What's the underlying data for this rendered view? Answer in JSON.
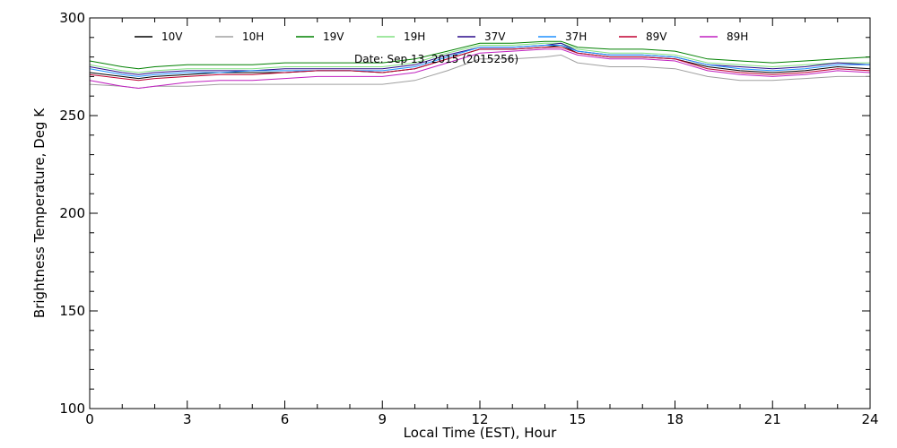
{
  "chart_data": {
    "type": "line",
    "xlabel": "Local Time (EST), Hour",
    "ylabel": "Brightness Temperature, Deg K",
    "xlim": [
      0,
      24
    ],
    "ylim": [
      100,
      300
    ],
    "xticks": [
      0,
      3,
      6,
      9,
      12,
      15,
      18,
      21,
      24
    ],
    "yticks": [
      100,
      150,
      200,
      250,
      300
    ],
    "x_minor_step": 1,
    "y_minor_step": 10,
    "grid": false,
    "legend_placement": "top",
    "annotation": "Date: Sep 13, 2015 (2015256)",
    "x": [
      0,
      1,
      1.5,
      2,
      3,
      4,
      5,
      6,
      7,
      8,
      9,
      10,
      11,
      12,
      13,
      14,
      14.5,
      15,
      16,
      17,
      18,
      19,
      20,
      21,
      22,
      23,
      24
    ],
    "series": [
      {
        "name": "10V",
        "color": "#000000",
        "values": [
          272,
          270,
          269,
          270,
          271,
          272,
          272,
          272,
          273,
          273,
          272,
          274,
          279,
          284,
          284,
          285,
          286,
          282,
          280,
          280,
          279,
          275,
          273,
          272,
          273,
          275,
          274
        ]
      },
      {
        "name": "10H",
        "color": "#a0a0a0",
        "values": [
          266,
          265,
          264,
          265,
          265,
          266,
          266,
          266,
          266,
          266,
          266,
          268,
          273,
          279,
          279,
          280,
          281,
          277,
          275,
          275,
          274,
          270,
          268,
          268,
          269,
          270,
          270
        ]
      },
      {
        "name": "19V",
        "color": "#008000",
        "values": [
          278,
          275,
          274,
          275,
          276,
          276,
          276,
          277,
          277,
          277,
          277,
          279,
          283,
          287,
          287,
          288,
          288,
          285,
          284,
          284,
          283,
          279,
          278,
          277,
          278,
          279,
          280
        ]
      },
      {
        "name": "19H",
        "color": "#80e080",
        "values": [
          276,
          273,
          272,
          273,
          274,
          274,
          274,
          275,
          275,
          275,
          275,
          277,
          282,
          286,
          286,
          287,
          287,
          284,
          282,
          282,
          281,
          277,
          276,
          275,
          276,
          277,
          277
        ]
      },
      {
        "name": "37V",
        "color": "#2a0a8a",
        "values": [
          275,
          272,
          271,
          272,
          273,
          273,
          273,
          274,
          274,
          274,
          274,
          276,
          281,
          285,
          285,
          286,
          287,
          283,
          281,
          281,
          280,
          276,
          275,
          274,
          275,
          277,
          276
        ]
      },
      {
        "name": "37H",
        "color": "#1e90ff",
        "values": [
          274,
          271,
          270,
          271,
          272,
          272,
          273,
          273,
          273,
          273,
          273,
          275,
          280,
          285,
          285,
          286,
          286,
          283,
          281,
          281,
          280,
          276,
          274,
          273,
          274,
          276,
          276
        ]
      },
      {
        "name": "89V",
        "color": "#c00030",
        "values": [
          271,
          269,
          268,
          269,
          270,
          271,
          271,
          272,
          273,
          273,
          272,
          274,
          279,
          284,
          284,
          285,
          285,
          282,
          280,
          280,
          279,
          274,
          272,
          271,
          272,
          274,
          273
        ]
      },
      {
        "name": "89H",
        "color": "#c020c0",
        "values": [
          268,
          265,
          264,
          265,
          267,
          268,
          268,
          269,
          270,
          270,
          270,
          272,
          277,
          282,
          283,
          284,
          284,
          281,
          279,
          279,
          278,
          273,
          271,
          270,
          271,
          273,
          272
        ]
      }
    ]
  }
}
